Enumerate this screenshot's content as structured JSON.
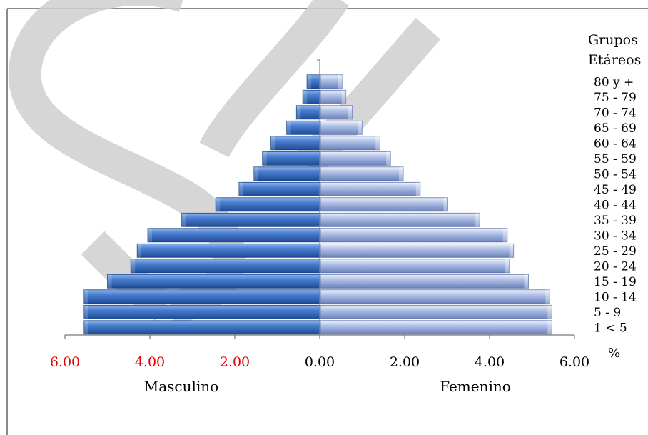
{
  "chart_data": {
    "type": "bar",
    "orientation": "horizontal",
    "title": "",
    "legend_title": [
      "Grupos",
      "Etáreos"
    ],
    "categories": [
      "1 < 5",
      "5 - 9",
      "10 - 14",
      "15 - 19",
      "20 - 24",
      "25 - 29",
      "30 - 34",
      "35 - 39",
      "40 - 44",
      "45 - 49",
      "50 - 54",
      "55 - 59",
      "60 - 64",
      "65 - 69",
      "70 - 74",
      "75 - 79",
      "80 y +"
    ],
    "series": [
      {
        "name": "Masculino",
        "side": "left",
        "color": "#3c6fc0",
        "values": [
          5.55,
          5.55,
          5.55,
          5.0,
          4.45,
          4.3,
          4.05,
          3.25,
          2.45,
          1.9,
          1.55,
          1.35,
          1.15,
          0.78,
          0.55,
          0.4,
          0.3
        ]
      },
      {
        "name": "Femenino",
        "side": "right",
        "color": "#9eb1dc",
        "values": [
          5.45,
          5.45,
          5.4,
          4.9,
          4.45,
          4.55,
          4.4,
          3.75,
          3.0,
          2.35,
          1.95,
          1.65,
          1.4,
          0.98,
          0.75,
          0.6,
          0.52
        ]
      }
    ],
    "xlim": [
      -6,
      6
    ],
    "x_ticks": [
      {
        "label": "6.00",
        "value": -6,
        "color": "#e60000"
      },
      {
        "label": "4.00",
        "value": -4,
        "color": "#e60000"
      },
      {
        "label": "2.00",
        "value": -2,
        "color": "#e60000"
      },
      {
        "label": "0.00",
        "value": 0,
        "color": "#000000"
      },
      {
        "label": "2.00",
        "value": 2,
        "color": "#000000"
      },
      {
        "label": "4.00",
        "value": 4,
        "color": "#000000"
      },
      {
        "label": "6.00",
        "value": 6,
        "color": "#000000"
      }
    ],
    "unit_label": "%",
    "xlabel_left": "Masculino",
    "xlabel_right": "Femenino",
    "grid": false,
    "legend_placement": "right"
  },
  "colors": {
    "male_dark": "#1f4f9a",
    "male_light": "#7aa3e4",
    "female_dark": "#6f86bf",
    "female_light": "#d9e2f5",
    "watermark": "#c8c8c8",
    "frame": "#8a8a8a"
  }
}
